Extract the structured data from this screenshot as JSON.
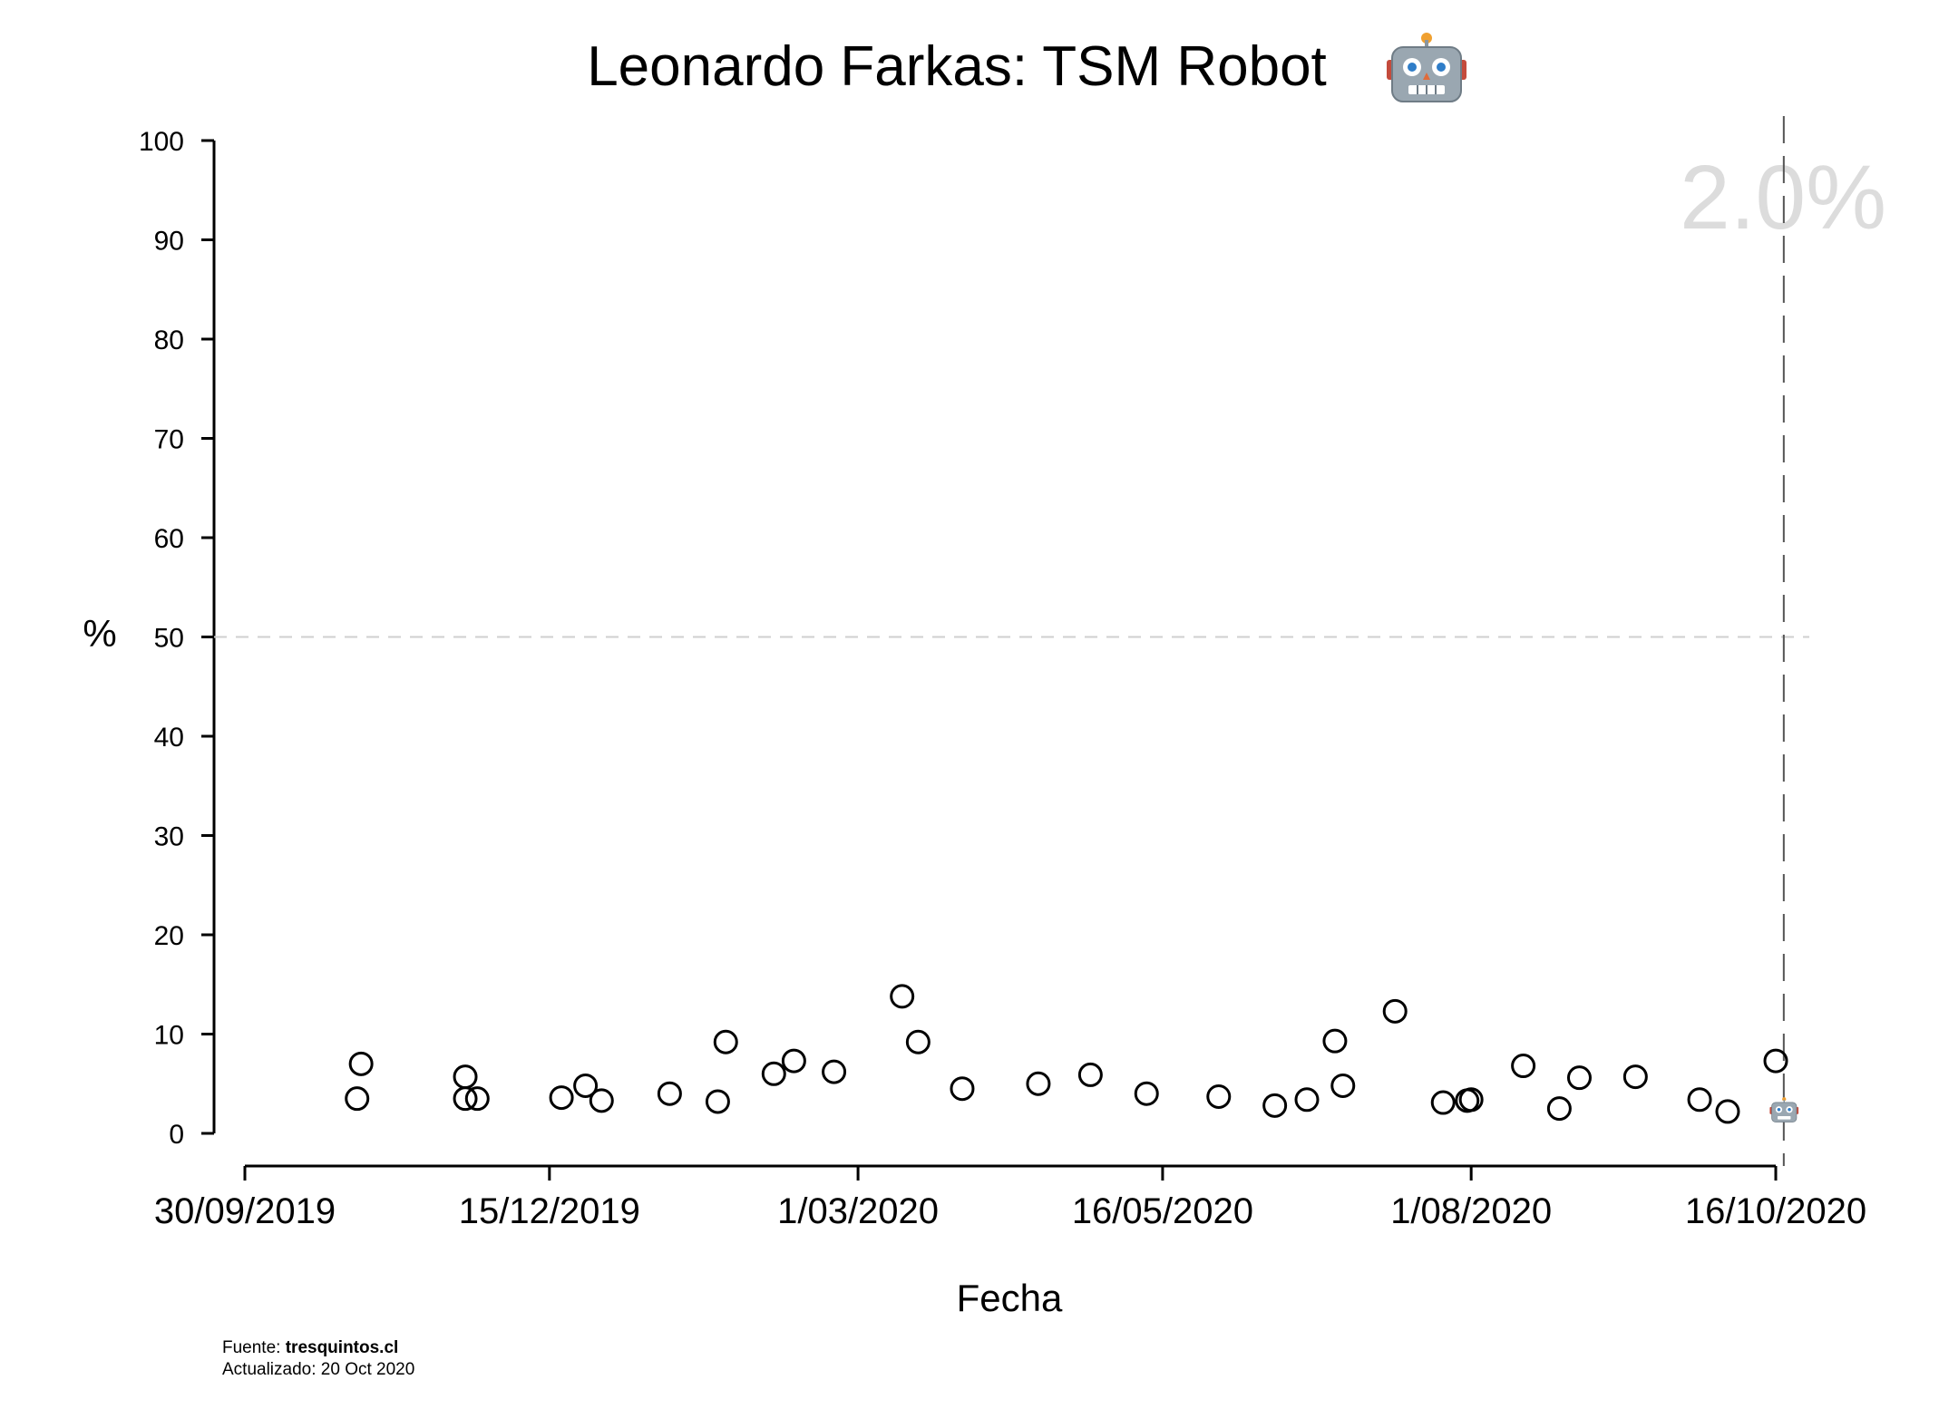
{
  "chart_data": {
    "type": "scatter",
    "title": "Leonardo Farkas: TSM Robot",
    "title_icon": "robot-face-icon",
    "xlabel": "Fecha",
    "ylabel": "%",
    "ylim": [
      0,
      100
    ],
    "yticks": [
      0,
      10,
      20,
      30,
      40,
      50,
      60,
      70,
      80,
      90,
      100
    ],
    "xlim": [
      "2019-09-30",
      "2020-10-20"
    ],
    "xticks": [
      "2019-09-30",
      "2019-12-15",
      "2020-03-01",
      "2020-05-16",
      "2020-08-01",
      "2020-10-16"
    ],
    "xtick_labels": [
      "30/09/2019",
      "15/12/2019",
      "1/03/2020",
      "16/05/2020",
      "1/08/2020",
      "16/10/2020"
    ],
    "reference_y": 50,
    "current_date": "2020-10-18",
    "current_label": "2.0%",
    "current_value": 2.0,
    "current_marker_icon": "robot-face-icon",
    "grid": false,
    "marker": "open-circle",
    "points": [
      {
        "x": "2019-10-28",
        "y": 3.5
      },
      {
        "x": "2019-10-29",
        "y": 7.0
      },
      {
        "x": "2019-11-24",
        "y": 5.7
      },
      {
        "x": "2019-11-24",
        "y": 3.5
      },
      {
        "x": "2019-11-27",
        "y": 3.5
      },
      {
        "x": "2019-12-18",
        "y": 3.6
      },
      {
        "x": "2019-12-24",
        "y": 4.8
      },
      {
        "x": "2019-12-28",
        "y": 3.3
      },
      {
        "x": "2020-01-14",
        "y": 4.0
      },
      {
        "x": "2020-01-26",
        "y": 3.2
      },
      {
        "x": "2020-01-28",
        "y": 9.2
      },
      {
        "x": "2020-02-09",
        "y": 6.0
      },
      {
        "x": "2020-02-14",
        "y": 7.3
      },
      {
        "x": "2020-02-24",
        "y": 6.2
      },
      {
        "x": "2020-03-12",
        "y": 13.8
      },
      {
        "x": "2020-03-16",
        "y": 9.2
      },
      {
        "x": "2020-03-27",
        "y": 4.5
      },
      {
        "x": "2020-04-15",
        "y": 5.0
      },
      {
        "x": "2020-04-28",
        "y": 5.9
      },
      {
        "x": "2020-05-12",
        "y": 4.0
      },
      {
        "x": "2020-05-30",
        "y": 3.7
      },
      {
        "x": "2020-06-13",
        "y": 2.8
      },
      {
        "x": "2020-06-21",
        "y": 3.4
      },
      {
        "x": "2020-06-28",
        "y": 9.3
      },
      {
        "x": "2020-06-30",
        "y": 4.8
      },
      {
        "x": "2020-07-13",
        "y": 12.3
      },
      {
        "x": "2020-07-25",
        "y": 3.1
      },
      {
        "x": "2020-07-31",
        "y": 3.3
      },
      {
        "x": "2020-08-01",
        "y": 3.4
      },
      {
        "x": "2020-08-14",
        "y": 6.8
      },
      {
        "x": "2020-08-23",
        "y": 2.5
      },
      {
        "x": "2020-08-28",
        "y": 5.6
      },
      {
        "x": "2020-09-11",
        "y": 5.7
      },
      {
        "x": "2020-09-27",
        "y": 3.4
      },
      {
        "x": "2020-10-04",
        "y": 2.2
      },
      {
        "x": "2020-10-16",
        "y": 7.3
      }
    ]
  },
  "footer": {
    "source_prefix": "Fuente: ",
    "source_name": "tresquintos.cl",
    "updated": "Actualizado: 20 Oct 2020"
  }
}
